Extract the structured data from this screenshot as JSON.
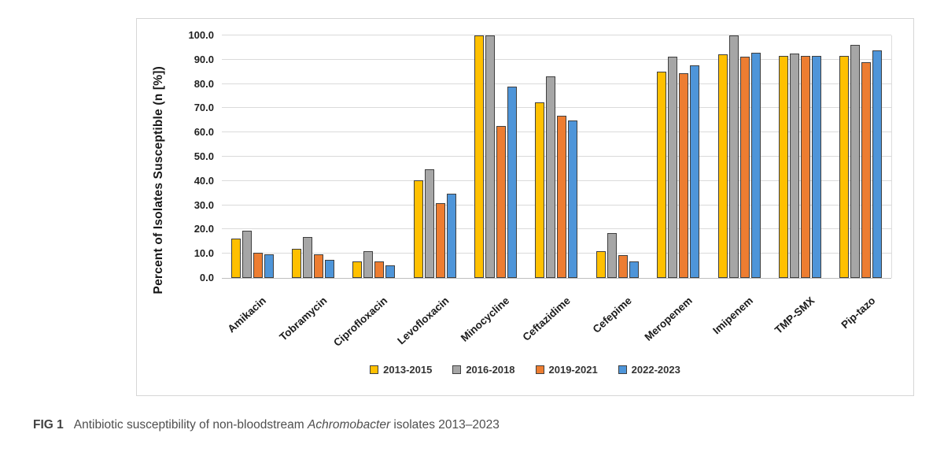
{
  "figure": {
    "caption": {
      "label": "FIG 1",
      "text_before": "Antibiotic susceptibility of non-bloodstream ",
      "italic_term": "Achromobacter",
      "text_after": " isolates 2013–2023"
    }
  },
  "chart_data": {
    "type": "bar",
    "title": "",
    "xlabel": "",
    "ylabel": "Percent of Isolates Susceptible (n [%])",
    "ylim": [
      0,
      100
    ],
    "y_tick_labels": [
      "0.0",
      "10.0",
      "20.0",
      "30.0",
      "40.0",
      "50.0",
      "60.0",
      "70.0",
      "80.0",
      "90.0",
      "100.0"
    ],
    "grid": true,
    "legend_position": "bottom",
    "gridline_color": "#dadada",
    "bar_border_color": "#3f3f3f",
    "categories": [
      "Amikacin",
      "Tobramycin",
      "Ciprofloxacin",
      "Levofloxacin",
      "Minocycline",
      "Ceftazidime",
      "Cefepime",
      "Meropenem",
      "Imipenem",
      "TMP-SMX",
      "Pip-tazo"
    ],
    "series": [
      {
        "name": "2013-2015",
        "color": "#FFC000",
        "values": [
          16.3,
          12.0,
          6.7,
          40.4,
          100.0,
          72.4,
          11.0,
          85.0,
          92.2,
          91.6,
          91.7
        ]
      },
      {
        "name": "2016-2018",
        "color": "#A6A6A6",
        "values": [
          19.4,
          16.9,
          11.2,
          44.8,
          100.0,
          83.0,
          18.4,
          91.2,
          100.0,
          92.5,
          96.0
        ]
      },
      {
        "name": "2019-2021",
        "color": "#ED7D31",
        "values": [
          10.4,
          9.8,
          6.9,
          30.8,
          62.5,
          66.9,
          9.5,
          84.4,
          91.3,
          91.6,
          89.0
        ]
      },
      {
        "name": "2022-2023",
        "color": "#4E95D9",
        "values": [
          9.7,
          7.6,
          5.3,
          34.6,
          78.8,
          64.8,
          6.7,
          87.6,
          92.7,
          91.6,
          93.7
        ]
      }
    ]
  }
}
